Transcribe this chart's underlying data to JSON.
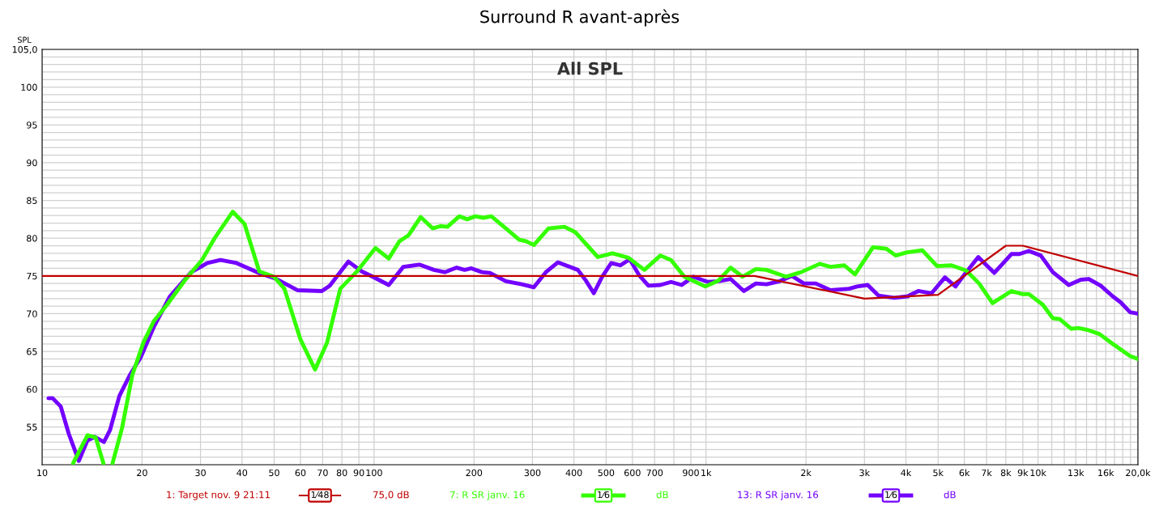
{
  "chart_data": {
    "type": "line",
    "title": "Surround R avant-après",
    "subtitle": "All SPL",
    "ylabel": "SPL",
    "log": "x",
    "grid": true,
    "legend": "bottom",
    "line_style": "solid",
    "marker": "none",
    "xlim": [
      10,
      20000
    ],
    "ylim": [
      50,
      105
    ],
    "xticks": [
      10,
      20,
      30,
      40,
      50,
      60,
      70,
      80,
      90,
      100,
      200,
      300,
      400,
      500,
      600,
      700,
      {
        "value": 800,
        "label": null
      },
      900,
      {
        "value": 1000,
        "label": "1k"
      },
      {
        "value": 2000,
        "label": "2k"
      },
      {
        "value": 3000,
        "label": "3k"
      },
      {
        "value": 4000,
        "label": "4k"
      },
      {
        "value": 5000,
        "label": "5k"
      },
      {
        "value": 6000,
        "label": "6k"
      },
      {
        "value": 7000,
        "label": "7k"
      },
      {
        "value": 8000,
        "label": "8k"
      },
      {
        "value": 9000,
        "label": "9k"
      },
      {
        "value": 10000,
        "label": "10k"
      },
      {
        "value": 11000,
        "label": null
      },
      {
        "value": 12000,
        "label": null
      },
      {
        "value": 13000,
        "label": "13k"
      },
      {
        "value": 14000,
        "label": null
      },
      {
        "value": 15000,
        "label": null
      },
      {
        "value": 16000,
        "label": "16k"
      },
      {
        "value": 17000,
        "label": null
      },
      {
        "value": 18000,
        "label": null
      },
      {
        "value": 19000,
        "label": null
      },
      {
        "value": 20000,
        "label": "20,0k"
      }
    ],
    "yticks": [
      {
        "value": 51,
        "label": null
      },
      {
        "value": 52,
        "label": null
      },
      {
        "value": 53,
        "label": null
      },
      {
        "value": 54,
        "label": null
      },
      55,
      {
        "value": 56,
        "label": null
      },
      {
        "value": 57,
        "label": null
      },
      {
        "value": 58,
        "label": null
      },
      {
        "value": 59,
        "label": null
      },
      60,
      {
        "value": 61,
        "label": null
      },
      {
        "value": 62,
        "label": null
      },
      {
        "value": 63,
        "label": null
      },
      {
        "value": 64,
        "label": null
      },
      65,
      {
        "value": 66,
        "label": null
      },
      {
        "value": 67,
        "label": null
      },
      {
        "value": 68,
        "label": null
      },
      {
        "value": 69,
        "label": null
      },
      70,
      {
        "value": 71,
        "label": null
      },
      {
        "value": 72,
        "label": null
      },
      {
        "value": 73,
        "label": null
      },
      {
        "value": 74,
        "label": null
      },
      75,
      {
        "value": 76,
        "label": null
      },
      {
        "value": 77,
        "label": null
      },
      {
        "value": 78,
        "label": null
      },
      {
        "value": 79,
        "label": null
      },
      80,
      {
        "value": 81,
        "label": null
      },
      {
        "value": 82,
        "label": null
      },
      {
        "value": 83,
        "label": null
      },
      {
        "value": 84,
        "label": null
      },
      85,
      {
        "value": 86,
        "label": null
      },
      {
        "value": 87,
        "label": null
      },
      {
        "value": 88,
        "label": null
      },
      {
        "value": 89,
        "label": null
      },
      90,
      {
        "value": 91,
        "label": null
      },
      {
        "value": 92,
        "label": null
      },
      {
        "value": 93,
        "label": null
      },
      {
        "value": 94,
        "label": null
      },
      95,
      {
        "value": 96,
        "label": null
      },
      {
        "value": 97,
        "label": null
      },
      {
        "value": 98,
        "label": null
      },
      {
        "value": 99,
        "label": null
      },
      100,
      {
        "value": 101,
        "label": null
      },
      {
        "value": 102,
        "label": null
      },
      {
        "value": 103,
        "label": null
      },
      {
        "value": 104,
        "label": null
      },
      {
        "value": 105,
        "label": "105,0"
      }
    ],
    "annotations": [
      "1⁄48",
      "75,0 dB",
      "1⁄6",
      "dB",
      "1⁄6",
      "dB"
    ],
    "series": [
      {
        "name": "1: Target nov. 9 21:11",
        "color": "#c00000",
        "x": [
          10,
          1400,
          3000,
          5000,
          8000,
          9000,
          20000
        ],
        "values": [
          75,
          75,
          72,
          72.5,
          79,
          79,
          75
        ]
      },
      {
        "name": "7: R SR janv. 16",
        "color": "#33ff00",
        "x": [
          12.4,
          13.7,
          14.5,
          15.3,
          15.8,
          16.3,
          17.4,
          18.7,
          20.2,
          21.7,
          23.8,
          27.1,
          30.3,
          33.2,
          37.5,
          40.7,
          45.1,
          49.9,
          53.7,
          60,
          66.4,
          72.2,
          79.1,
          88.4,
          101,
          110.7,
          119.2,
          127.1,
          138.1,
          150.1,
          158.7,
          166.3,
          180.6,
          190.9,
          201.8,
          213.3,
          225.5,
          249.5,
          273.7,
          286.6,
          302.9,
          335.3,
          374.6,
          403.5,
          472,
          522.3,
          583.6,
          652.2,
          728.5,
          784.6,
          860.2,
          995,
          1091,
          1185,
          1288,
          1413,
          1521,
          1741,
          1934,
          2200,
          2370,
          2609,
          2810,
          3184,
          3494,
          3726,
          4012,
          4482,
          4962,
          5490,
          6079,
          6645,
          7292,
          8318,
          8953,
          9382,
          10330,
          11080,
          11600,
          12600,
          13210,
          14220,
          15320,
          16790,
          18940,
          20000
        ],
        "values": [
          50.2,
          53.9,
          53.6,
          50.2,
          null,
          50.2,
          54.8,
          61.9,
          66.2,
          69.0,
          71.2,
          74.6,
          77.1,
          80.1,
          83.5,
          81.9,
          75.6,
          74.9,
          73.3,
          66.6,
          62.6,
          66.2,
          73.3,
          75.5,
          78.7,
          77.3,
          79.6,
          80.4,
          82.8,
          81.3,
          81.6,
          81.5,
          82.9,
          82.5,
          82.9,
          82.7,
          82.9,
          81.3,
          79.8,
          79.6,
          79.1,
          81.3,
          81.5,
          80.8,
          77.5,
          78.0,
          77.4,
          75.8,
          77.7,
          77.1,
          74.9,
          73.6,
          74.4,
          76.1,
          74.9,
          75.9,
          75.8,
          74.9,
          75.5,
          76.6,
          76.2,
          76.4,
          75.2,
          78.8,
          78.6,
          77.7,
          78.1,
          78.4,
          76.3,
          76.4,
          75.7,
          74.0,
          71.4,
          73.0,
          72.6,
          72.6,
          71.2,
          69.4,
          69.3,
          68.0,
          68.1,
          67.8,
          67.3,
          66.0,
          64.4,
          64.0
        ]
      },
      {
        "name": "13: R SR janv. 16",
        "color": "#7300ff",
        "x": [
          10.45,
          10.76,
          11.38,
          12.03,
          12.9,
          13.69,
          14.41,
          15.35,
          16.02,
          17.09,
          18.39,
          19.81,
          21.73,
          24.27,
          28.14,
          31.45,
          34.47,
          38.52,
          45.48,
          50.8,
          58.9,
          69.6,
          73.5,
          83.7,
          91.8,
          99,
          110.7,
          122.5,
          136.9,
          151.5,
          163.2,
          177.3,
          187.4,
          196.3,
          211.3,
          223.4,
          249.5,
          278.7,
          302.9,
          329.2,
          357.7,
          411,
          434.2,
          459.1,
          485.2,
          517.8,
          552,
          589,
          628.5,
          670.5,
          728.5,
          784.6,
          844.5,
          915,
          1013,
          1091,
          1185,
          1300,
          1413,
          1521,
          1668,
          1813,
          1970,
          2141,
          2370,
          2697,
          2851,
          3069,
          3305,
          3692,
          4048,
          4360,
          4779,
          5244,
          5644,
          6079,
          6607,
          7381,
          8318,
          8793,
          9382,
          10195,
          11080,
          12380,
          13450,
          14220,
          15450,
          16790,
          17750,
          18940,
          20000
        ],
        "values": [
          58.8,
          58.8,
          57.7,
          54.1,
          50.5,
          53.2,
          53.7,
          53.0,
          54.6,
          59.1,
          61.9,
          64.2,
          68.3,
          72.3,
          75.5,
          76.7,
          77.1,
          76.7,
          75.3,
          74.6,
          73.1,
          73.0,
          73.7,
          76.9,
          75.6,
          74.9,
          73.8,
          76.2,
          76.5,
          75.8,
          75.5,
          76.1,
          75.8,
          76.0,
          75.5,
          75.4,
          74.3,
          73.9,
          73.5,
          75.5,
          76.8,
          75.8,
          74.4,
          72.7,
          74.8,
          76.7,
          76.4,
          77.2,
          75.1,
          73.7,
          73.8,
          74.2,
          73.8,
          74.9,
          74.2,
          74.3,
          74.6,
          73.0,
          74.0,
          73.9,
          74.3,
          75.0,
          74.0,
          74.0,
          73.1,
          73.3,
          73.6,
          73.8,
          72.4,
          72.1,
          72.3,
          73.0,
          72.7,
          74.8,
          73.6,
          75.5,
          77.5,
          75.4,
          77.9,
          77.9,
          78.3,
          77.7,
          75.5,
          73.8,
          74.5,
          74.6,
          73.7,
          72.3,
          71.5,
          70.2,
          70.0
        ]
      }
    ]
  }
}
